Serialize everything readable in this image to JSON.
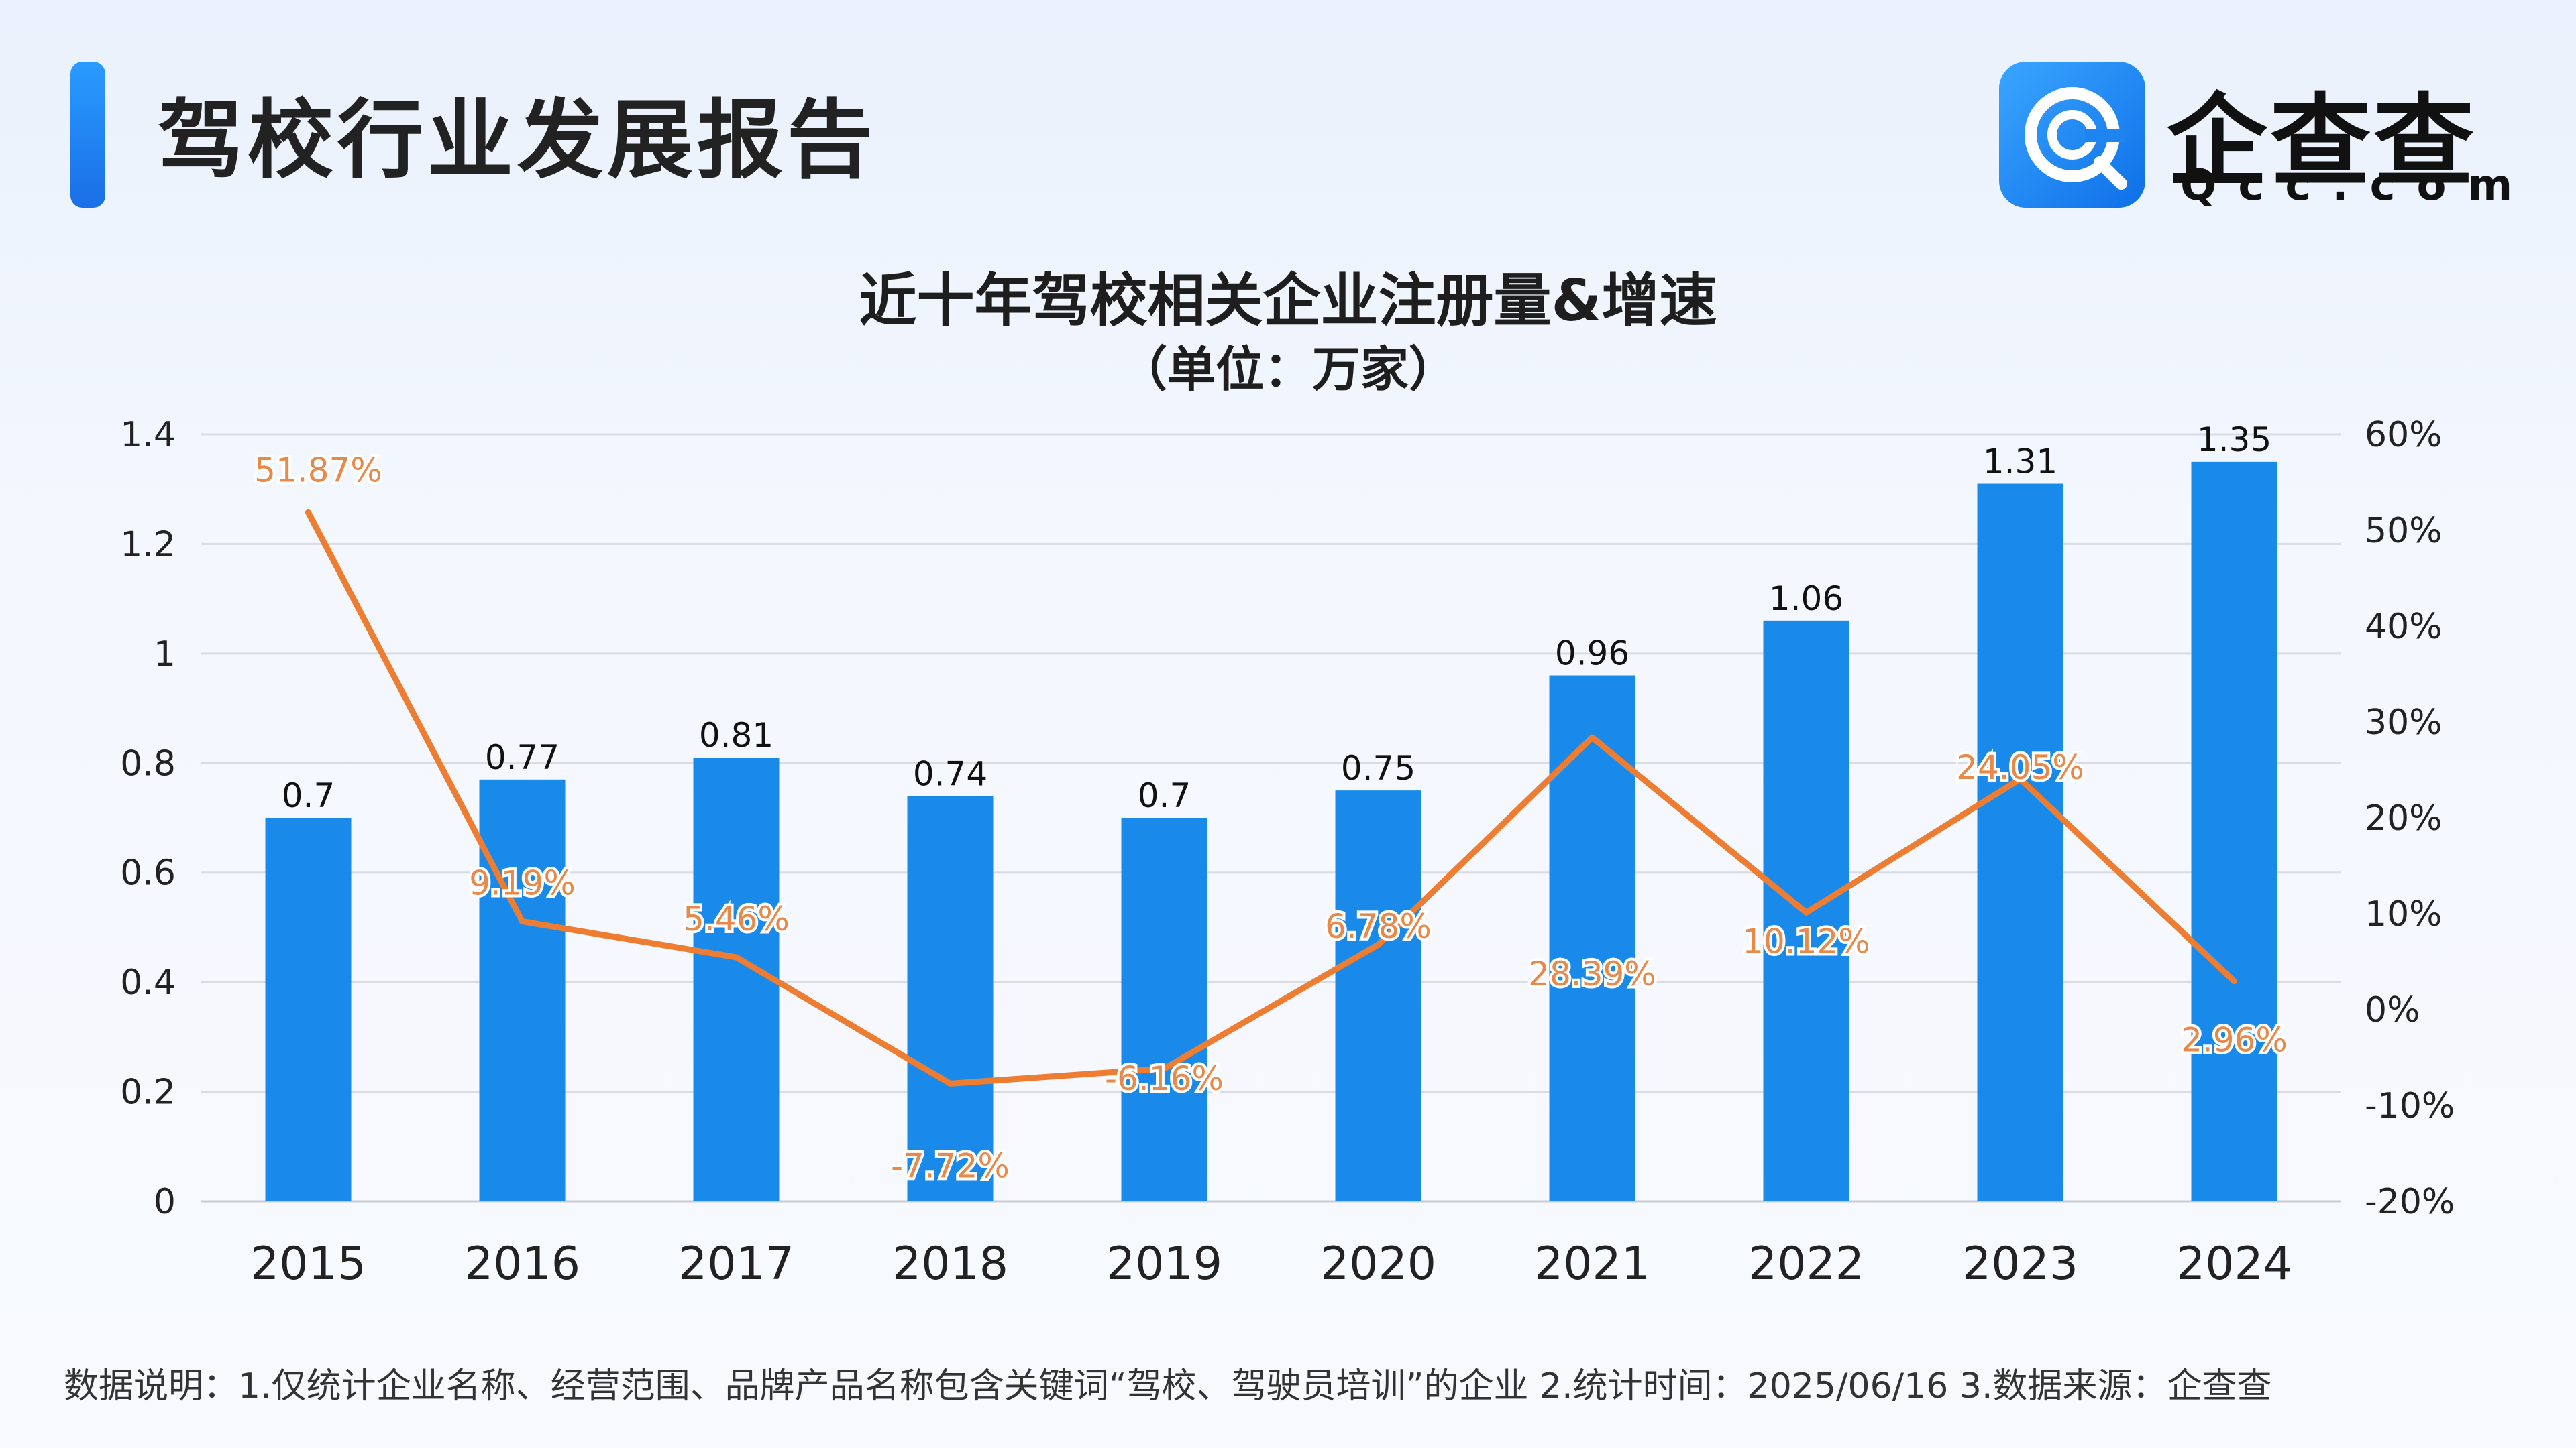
{
  "header": {
    "title": "驾校行业发展报告",
    "logo": {
      "icon": "qcc-logo-icon",
      "name": "企查查",
      "domain": "Qcc.com",
      "accent": "#1a7ff0"
    }
  },
  "chart_data": {
    "type": "bar+line",
    "title": "近十年驾校相关企业注册量&增速",
    "subtitle": "（单位：万家）",
    "categories": [
      "2015",
      "2016",
      "2017",
      "2018",
      "2019",
      "2020",
      "2021",
      "2022",
      "2023",
      "2024"
    ],
    "series": [
      {
        "name": "注册量",
        "type": "bar",
        "axis": "left",
        "color": "#1a8aea",
        "values": [
          0.7,
          0.77,
          0.81,
          0.74,
          0.7,
          0.75,
          0.96,
          1.06,
          1.31,
          1.35
        ],
        "labels": [
          "0.7",
          "0.77",
          "0.81",
          "0.74",
          "0.7",
          "0.75",
          "0.96",
          "1.06",
          "1.31",
          "1.35"
        ]
      },
      {
        "name": "增速",
        "type": "line",
        "axis": "right",
        "color": "#ee7d31",
        "values": [
          51.87,
          9.19,
          5.46,
          -7.72,
          -6.16,
          6.78,
          28.39,
          10.12,
          24.05,
          2.96
        ],
        "labels": [
          "51.87%",
          "9.19%",
          "5.46%",
          "-7.72%",
          "-6.16%",
          "6.78%",
          "28.39%",
          "10.12%",
          "24.05%",
          "2.96%"
        ]
      }
    ],
    "y_left": {
      "min": 0,
      "max": 1.4,
      "ticks": [
        0,
        0.2,
        0.4,
        0.6,
        0.8,
        1,
        1.2,
        1.4
      ],
      "tick_labels": [
        "0",
        "0.2",
        "0.4",
        "0.6",
        "0.8",
        "1",
        "1.2",
        "1.4"
      ]
    },
    "y_right": {
      "min": -20,
      "max": 60,
      "ticks": [
        -20,
        -10,
        0,
        10,
        20,
        30,
        40,
        50,
        60
      ],
      "tick_labels": [
        "-20%",
        "-10%",
        "0%",
        "10%",
        "20%",
        "30%",
        "40%",
        "50%",
        "60%"
      ]
    },
    "grid": true
  },
  "footnote": "数据说明：1.仅统计企业名称、经营范围、品牌产品名称包含关键词“驾校、驾驶员培训”的企业   2.统计时间：2025/06/16     3.数据来源：企查查"
}
